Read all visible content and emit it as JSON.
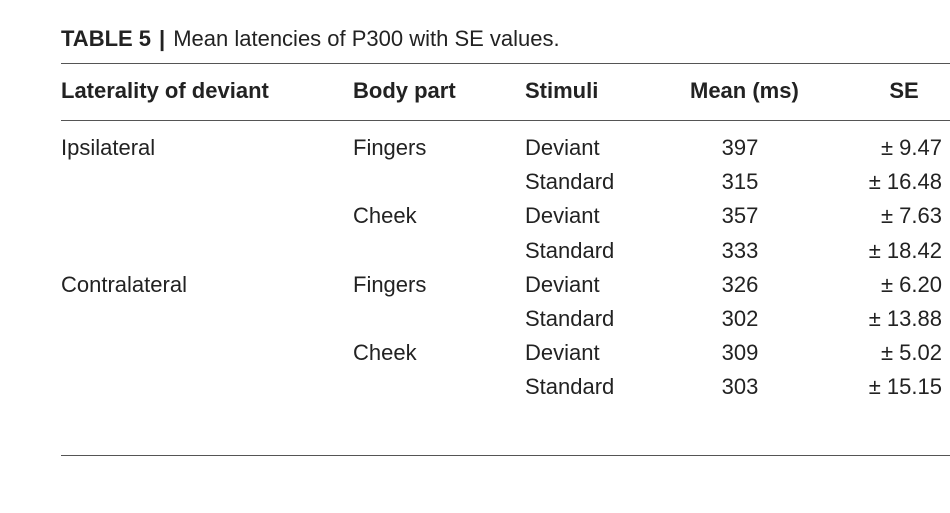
{
  "caption": {
    "label": "TABLE 5",
    "separator": "|",
    "text": "Mean latencies of P300 with SE values."
  },
  "table": {
    "headers": [
      "Laterality of deviant",
      "Body part",
      "Stimuli",
      "Mean (ms)",
      "SE"
    ],
    "rows": [
      {
        "laterality": "Ipsilateral",
        "body_part": "Fingers",
        "stimuli": "Deviant",
        "mean": "397",
        "se": "± 9.47"
      },
      {
        "laterality": "",
        "body_part": "",
        "stimuli": "Standard",
        "mean": "315",
        "se": "± 16.48"
      },
      {
        "laterality": "",
        "body_part": "Cheek",
        "stimuli": "Deviant",
        "mean": "357",
        "se": "± 7.63"
      },
      {
        "laterality": "",
        "body_part": "",
        "stimuli": "Standard",
        "mean": "333",
        "se": "± 18.42"
      },
      {
        "laterality": "Contralateral",
        "body_part": "Fingers",
        "stimuli": "Deviant",
        "mean": "326",
        "se": "± 6.20"
      },
      {
        "laterality": "",
        "body_part": "",
        "stimuli": "Standard",
        "mean": "302",
        "se": "± 13.88"
      },
      {
        "laterality": "",
        "body_part": "Cheek",
        "stimuli": "Deviant",
        "mean": "309",
        "se": "± 5.02"
      },
      {
        "laterality": "",
        "body_part": "",
        "stimuli": "Standard",
        "mean": "303",
        "se": "± 15.15"
      }
    ]
  }
}
